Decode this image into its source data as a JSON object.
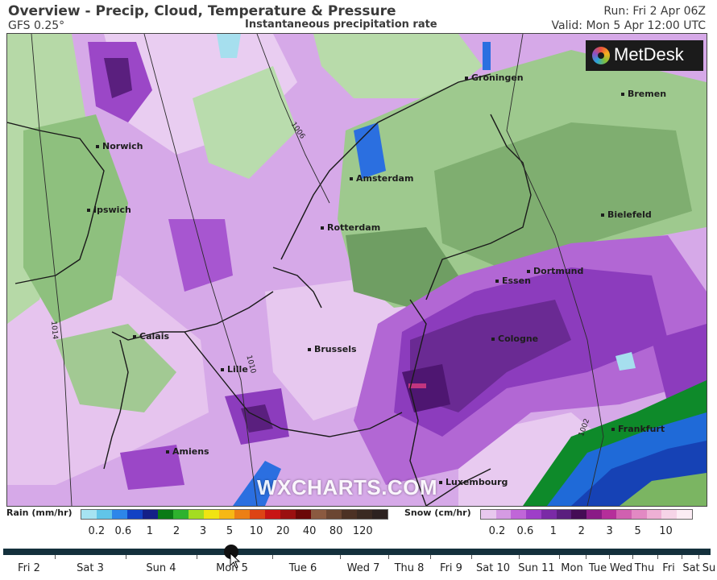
{
  "header": {
    "title": "Overview - Precip, Cloud, Temperature & Pressure",
    "model": "GFS 0.25°",
    "subtitle": "Instantaneous precipitation rate",
    "run": "Run: Fri 2 Apr 06Z",
    "valid": "Valid: Mon 5 Apr 12:00 UTC"
  },
  "logo": {
    "text": "MetDesk"
  },
  "watermark": "WXCHARTS.COM",
  "map": {
    "cities": [
      "Groningen",
      "Bremen",
      "Norwich",
      "Amsterdam",
      "Ipswich",
      "Rotterdam",
      "Bielefeld",
      "Dortmund",
      "Essen",
      "Calais",
      "Brussels",
      "Cologne",
      "Lille",
      "Frankfurt",
      "Amiens",
      "Luxembourg"
    ],
    "isobars": [
      "1006",
      "1010",
      "1014",
      "1002"
    ],
    "colors": {
      "snow_light": "#e4c2ec",
      "snow_mid": "#c886dc",
      "snow_heavy": "#9b47c7",
      "snow_very_heavy": "#5a1f7e",
      "cloud_green": "#a8cf98",
      "cloud_dark": "#6f9e63",
      "rain_blue": "#2b6fe0",
      "rain_green": "#0e8a2a"
    }
  },
  "legend": {
    "rain_label": "Rain (mm/hr)",
    "rain_ticks": [
      "0.2",
      "0.6",
      "1",
      "2",
      "3",
      "5",
      "10",
      "20",
      "40",
      "80",
      "120"
    ],
    "rain_colors": [
      "#a6e3f2",
      "#61c5e8",
      "#2d86e9",
      "#1242c4",
      "#142088",
      "#0a7a16",
      "#2eb22e",
      "#a4dc22",
      "#f0e412",
      "#f7b814",
      "#ec7f14",
      "#dd4414",
      "#c81414",
      "#9b1010",
      "#6b0808",
      "#8b5a40",
      "#6b4632",
      "#4c3124",
      "#3a2a22",
      "#2c2220"
    ],
    "snow_label": "Snow (cm/hr)",
    "snow_ticks": [
      "0.2",
      "0.6",
      "1",
      "2",
      "3",
      "5",
      "10"
    ],
    "snow_colors": [
      "#e8c8ee",
      "#d59be3",
      "#c066d8",
      "#9e3ec8",
      "#7a2aa6",
      "#5a1f7e",
      "#440c55",
      "#8a1b86",
      "#b52e9a",
      "#d060b0",
      "#e289c3",
      "#eeb0d5",
      "#f6d4e7",
      "#fcecf4"
    ]
  },
  "timeline": {
    "labels": [
      "Fri 2",
      "Sat 3",
      "Sun 4",
      "Mon 5",
      "Tue 6",
      "Wed 7",
      "Thu 8",
      "Fri 9",
      "Sat 10",
      "Sun 11",
      "Mon",
      "Tue",
      "Wed",
      "Thu",
      "Fri",
      "Sat",
      "Su"
    ]
  }
}
